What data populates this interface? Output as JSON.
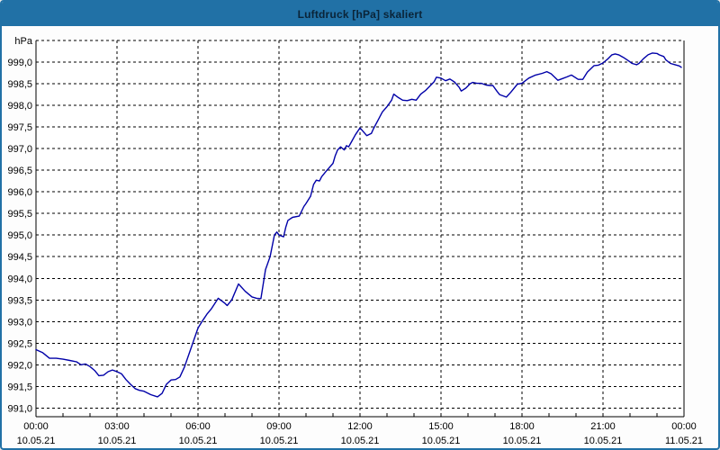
{
  "window": {
    "title": "Luftdruck [hPa] skaliert",
    "colors": {
      "title_bar": "#2171a6",
      "title_text": "#0a2438",
      "border": "#2171a6",
      "background": "#fdfdfd",
      "plot_background": "#ffffff",
      "grid": "#000000",
      "axis": "#000000",
      "label_text": "#000000"
    }
  },
  "chart_data": {
    "type": "line",
    "title": "Luftdruck [hPa] skaliert",
    "ylabel": "hPa",
    "xlabel": "",
    "unit_label": "hPa",
    "grid": "dashed",
    "legend": "none",
    "ylim": [
      990.8,
      999.5
    ],
    "x_range_hours": [
      0,
      24
    ],
    "x_minor_tick_every_hours": 1,
    "y_ticks": [
      {
        "value": 999.0,
        "label": "999,0"
      },
      {
        "value": 998.5,
        "label": "998,5"
      },
      {
        "value": 998.0,
        "label": "998,0"
      },
      {
        "value": 997.5,
        "label": "997,5"
      },
      {
        "value": 997.0,
        "label": "997,0"
      },
      {
        "value": 996.5,
        "label": "996,5"
      },
      {
        "value": 996.0,
        "label": "996,0"
      },
      {
        "value": 995.5,
        "label": "995,5"
      },
      {
        "value": 995.0,
        "label": "995,0"
      },
      {
        "value": 994.5,
        "label": "994,5"
      },
      {
        "value": 994.0,
        "label": "994,0"
      },
      {
        "value": 993.5,
        "label": "993,5"
      },
      {
        "value": 993.0,
        "label": "993,0"
      },
      {
        "value": 992.5,
        "label": "992,5"
      },
      {
        "value": 992.0,
        "label": "992,0"
      },
      {
        "value": 991.5,
        "label": "991,5"
      },
      {
        "value": 991.0,
        "label": "991,0"
      }
    ],
    "x_ticks": [
      {
        "hour": 0,
        "time": "00:00",
        "date": "10.05.21"
      },
      {
        "hour": 3,
        "time": "03:00",
        "date": "10.05.21"
      },
      {
        "hour": 6,
        "time": "06:00",
        "date": "10.05.21"
      },
      {
        "hour": 9,
        "time": "09:00",
        "date": "10.05.21"
      },
      {
        "hour": 12,
        "time": "12:00",
        "date": "10.05.21"
      },
      {
        "hour": 15,
        "time": "15:00",
        "date": "10.05.21"
      },
      {
        "hour": 18,
        "time": "18:00",
        "date": "10.05.21"
      },
      {
        "hour": 21,
        "time": "21:00",
        "date": "10.05.21"
      },
      {
        "hour": 24,
        "time": "00:00",
        "date": "11.05.21"
      }
    ],
    "series": [
      {
        "name": "Luftdruck",
        "color": "#0000a8",
        "points": [
          [
            0.0,
            992.35
          ],
          [
            0.25,
            992.28
          ],
          [
            0.5,
            992.15
          ],
          [
            0.75,
            992.15
          ],
          [
            1.0,
            992.13
          ],
          [
            1.25,
            992.1
          ],
          [
            1.5,
            992.07
          ],
          [
            1.67,
            992.0
          ],
          [
            1.83,
            992.02
          ],
          [
            2.0,
            991.96
          ],
          [
            2.17,
            991.87
          ],
          [
            2.33,
            991.75
          ],
          [
            2.5,
            991.76
          ],
          [
            2.67,
            991.84
          ],
          [
            2.83,
            991.88
          ],
          [
            3.0,
            991.84
          ],
          [
            3.17,
            991.79
          ],
          [
            3.33,
            991.66
          ],
          [
            3.5,
            991.55
          ],
          [
            3.67,
            991.45
          ],
          [
            3.83,
            991.41
          ],
          [
            4.0,
            991.39
          ],
          [
            4.25,
            991.31
          ],
          [
            4.5,
            991.26
          ],
          [
            4.67,
            991.34
          ],
          [
            4.83,
            991.55
          ],
          [
            5.0,
            991.65
          ],
          [
            5.17,
            991.66
          ],
          [
            5.33,
            991.72
          ],
          [
            5.5,
            991.95
          ],
          [
            5.75,
            992.4
          ],
          [
            6.0,
            992.85
          ],
          [
            6.17,
            993.02
          ],
          [
            6.33,
            993.17
          ],
          [
            6.5,
            993.3
          ],
          [
            6.75,
            993.54
          ],
          [
            7.0,
            993.42
          ],
          [
            7.08,
            993.37
          ],
          [
            7.25,
            993.5
          ],
          [
            7.5,
            993.87
          ],
          [
            7.75,
            993.7
          ],
          [
            8.0,
            993.57
          ],
          [
            8.17,
            993.54
          ],
          [
            8.33,
            993.53
          ],
          [
            8.5,
            994.2
          ],
          [
            8.67,
            994.5
          ],
          [
            8.83,
            995.0
          ],
          [
            8.92,
            995.07
          ],
          [
            9.0,
            995.0
          ],
          [
            9.17,
            994.96
          ],
          [
            9.25,
            995.18
          ],
          [
            9.33,
            995.34
          ],
          [
            9.5,
            995.41
          ],
          [
            9.75,
            995.44
          ],
          [
            9.92,
            995.66
          ],
          [
            10.0,
            995.73
          ],
          [
            10.17,
            995.9
          ],
          [
            10.28,
            996.17
          ],
          [
            10.38,
            996.27
          ],
          [
            10.5,
            996.25
          ],
          [
            10.58,
            996.35
          ],
          [
            10.75,
            996.48
          ],
          [
            11.0,
            996.66
          ],
          [
            11.08,
            996.83
          ],
          [
            11.17,
            996.97
          ],
          [
            11.28,
            997.04
          ],
          [
            11.42,
            996.97
          ],
          [
            11.5,
            997.07
          ],
          [
            11.58,
            997.04
          ],
          [
            11.67,
            997.14
          ],
          [
            11.83,
            997.32
          ],
          [
            12.0,
            997.48
          ],
          [
            12.25,
            997.3
          ],
          [
            12.42,
            997.35
          ],
          [
            12.5,
            997.46
          ],
          [
            12.67,
            997.66
          ],
          [
            12.83,
            997.85
          ],
          [
            13.0,
            997.97
          ],
          [
            13.17,
            998.12
          ],
          [
            13.25,
            998.26
          ],
          [
            13.42,
            998.18
          ],
          [
            13.58,
            998.12
          ],
          [
            13.75,
            998.11
          ],
          [
            13.92,
            998.14
          ],
          [
            14.08,
            998.12
          ],
          [
            14.25,
            998.26
          ],
          [
            14.42,
            998.34
          ],
          [
            14.58,
            998.44
          ],
          [
            14.75,
            998.55
          ],
          [
            14.83,
            998.65
          ],
          [
            15.0,
            998.63
          ],
          [
            15.17,
            998.57
          ],
          [
            15.33,
            998.61
          ],
          [
            15.5,
            998.54
          ],
          [
            15.67,
            998.42
          ],
          [
            15.75,
            998.33
          ],
          [
            15.92,
            998.4
          ],
          [
            16.08,
            998.5
          ],
          [
            16.17,
            998.53
          ],
          [
            16.33,
            998.51
          ],
          [
            16.5,
            998.51
          ],
          [
            16.67,
            998.47
          ],
          [
            16.83,
            998.46
          ],
          [
            16.92,
            998.46
          ],
          [
            17.08,
            998.32
          ],
          [
            17.17,
            998.25
          ],
          [
            17.42,
            998.19
          ],
          [
            17.58,
            998.3
          ],
          [
            17.83,
            998.49
          ],
          [
            18.0,
            998.51
          ],
          [
            18.25,
            998.63
          ],
          [
            18.5,
            998.7
          ],
          [
            18.75,
            998.74
          ],
          [
            18.92,
            998.78
          ],
          [
            19.08,
            998.73
          ],
          [
            19.33,
            998.58
          ],
          [
            19.5,
            998.62
          ],
          [
            19.67,
            998.66
          ],
          [
            19.83,
            998.7
          ],
          [
            20.08,
            998.6
          ],
          [
            20.25,
            998.6
          ],
          [
            20.42,
            998.77
          ],
          [
            20.67,
            998.92
          ],
          [
            20.83,
            998.93
          ],
          [
            21.0,
            998.98
          ],
          [
            21.17,
            999.07
          ],
          [
            21.33,
            999.17
          ],
          [
            21.45,
            999.19
          ],
          [
            21.58,
            999.17
          ],
          [
            21.75,
            999.11
          ],
          [
            21.92,
            999.04
          ],
          [
            22.08,
            998.97
          ],
          [
            22.25,
            998.94
          ],
          [
            22.33,
            998.97
          ],
          [
            22.5,
            999.08
          ],
          [
            22.67,
            999.17
          ],
          [
            22.83,
            999.21
          ],
          [
            23.0,
            999.2
          ],
          [
            23.08,
            999.17
          ],
          [
            23.25,
            999.13
          ],
          [
            23.33,
            999.05
          ],
          [
            23.5,
            998.97
          ],
          [
            23.67,
            998.94
          ],
          [
            23.83,
            998.91
          ],
          [
            23.9,
            998.88
          ]
        ]
      }
    ]
  }
}
